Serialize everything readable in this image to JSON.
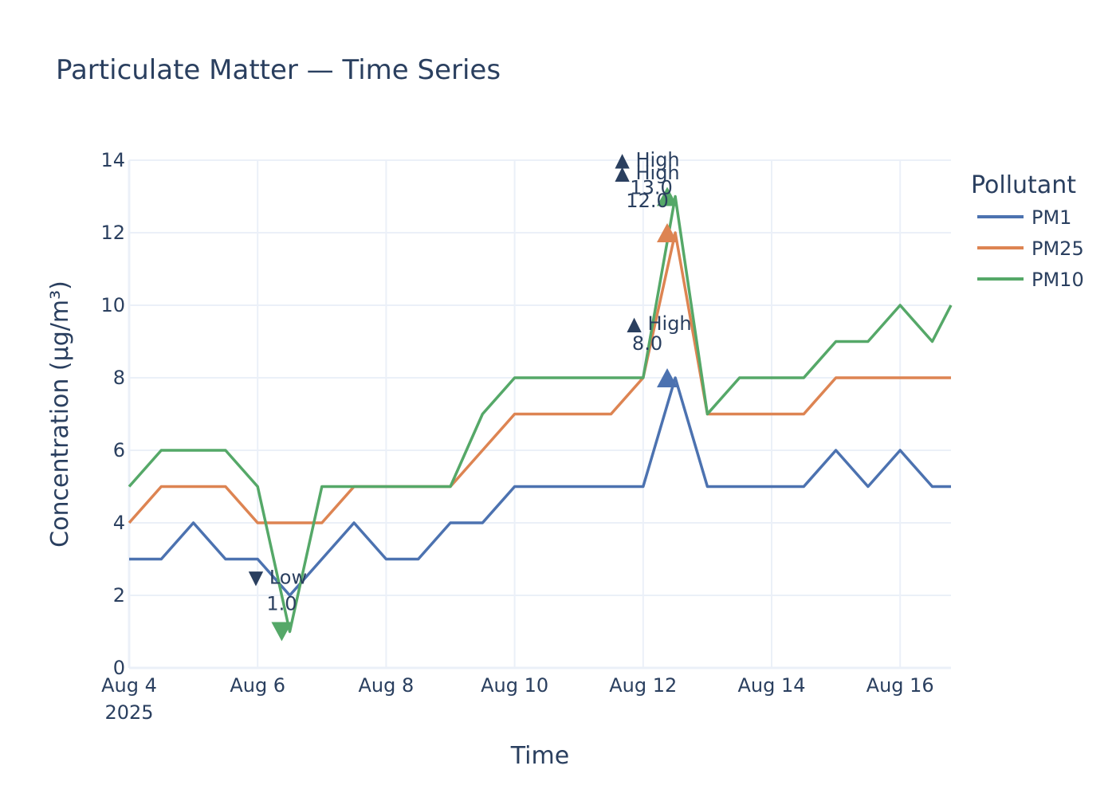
{
  "chart_data": {
    "type": "line",
    "title": "Particulate Matter — Time Series",
    "xlabel": "Time",
    "ylabel": "Concentration (µg/m³)",
    "x_range": [
      "2025-08-04",
      "2025-08-16 19:00"
    ],
    "ylim": [
      0,
      14
    ],
    "grid": true,
    "x_ticks": [
      {
        "date": "2025-08-04",
        "label": "Aug 4",
        "sublabel": "2025"
      },
      {
        "date": "2025-08-06",
        "label": "Aug 6"
      },
      {
        "date": "2025-08-08",
        "label": "Aug 8"
      },
      {
        "date": "2025-08-10",
        "label": "Aug 10"
      },
      {
        "date": "2025-08-12",
        "label": "Aug 12"
      },
      {
        "date": "2025-08-14",
        "label": "Aug 14"
      },
      {
        "date": "2025-08-16",
        "label": "Aug 16"
      }
    ],
    "y_ticks": [
      0,
      2,
      4,
      6,
      8,
      10,
      12,
      14
    ],
    "legend": {
      "title": "Pollutant",
      "position": "top-right"
    },
    "series": [
      {
        "name": "PM1",
        "color": "#4c72b0",
        "x": [
          "2025-08-04 00:00",
          "2025-08-04 12:00",
          "2025-08-05 00:00",
          "2025-08-05 12:00",
          "2025-08-06 00:00",
          "2025-08-06 12:00",
          "2025-08-07 00:00",
          "2025-08-07 12:00",
          "2025-08-08 00:00",
          "2025-08-08 12:00",
          "2025-08-09 00:00",
          "2025-08-09 12:00",
          "2025-08-10 00:00",
          "2025-08-10 12:00",
          "2025-08-11 00:00",
          "2025-08-11 12:00",
          "2025-08-12 00:00",
          "2025-08-12 12:00",
          "2025-08-13 00:00",
          "2025-08-13 12:00",
          "2025-08-14 00:00",
          "2025-08-14 12:00",
          "2025-08-15 00:00",
          "2025-08-15 12:00",
          "2025-08-16 00:00",
          "2025-08-16 12:00",
          "2025-08-16 19:00"
        ],
        "y": [
          3,
          3,
          4,
          3,
          3,
          2,
          3,
          4,
          3,
          3,
          4,
          4,
          5,
          5,
          5,
          5,
          5,
          8,
          5,
          5,
          5,
          5,
          6,
          5,
          6,
          5,
          5
        ]
      },
      {
        "name": "PM25",
        "color": "#dd8452",
        "x": [
          "2025-08-04 00:00",
          "2025-08-04 12:00",
          "2025-08-05 00:00",
          "2025-08-05 12:00",
          "2025-08-06 00:00",
          "2025-08-06 12:00",
          "2025-08-07 00:00",
          "2025-08-07 12:00",
          "2025-08-08 00:00",
          "2025-08-08 12:00",
          "2025-08-09 00:00",
          "2025-08-09 12:00",
          "2025-08-10 00:00",
          "2025-08-10 12:00",
          "2025-08-11 00:00",
          "2025-08-11 12:00",
          "2025-08-12 00:00",
          "2025-08-12 12:00",
          "2025-08-13 00:00",
          "2025-08-13 12:00",
          "2025-08-14 00:00",
          "2025-08-14 12:00",
          "2025-08-15 00:00",
          "2025-08-15 12:00",
          "2025-08-16 00:00",
          "2025-08-16 12:00",
          "2025-08-16 19:00"
        ],
        "y": [
          4,
          5,
          5,
          5,
          4,
          4,
          4,
          5,
          5,
          5,
          5,
          6,
          7,
          7,
          7,
          7,
          8,
          12,
          7,
          7,
          7,
          7,
          8,
          8,
          8,
          8,
          8
        ]
      },
      {
        "name": "PM10",
        "color": "#55a868",
        "x": [
          "2025-08-04 00:00",
          "2025-08-04 12:00",
          "2025-08-05 00:00",
          "2025-08-05 12:00",
          "2025-08-06 00:00",
          "2025-08-06 12:00",
          "2025-08-07 00:00",
          "2025-08-07 12:00",
          "2025-08-08 00:00",
          "2025-08-08 12:00",
          "2025-08-09 00:00",
          "2025-08-09 12:00",
          "2025-08-10 00:00",
          "2025-08-10 12:00",
          "2025-08-11 00:00",
          "2025-08-11 12:00",
          "2025-08-12 00:00",
          "2025-08-12 12:00",
          "2025-08-13 00:00",
          "2025-08-13 12:00",
          "2025-08-14 00:00",
          "2025-08-14 12:00",
          "2025-08-15 00:00",
          "2025-08-15 12:00",
          "2025-08-16 00:00",
          "2025-08-16 12:00",
          "2025-08-16 19:00"
        ],
        "y": [
          5,
          6,
          6,
          6,
          5,
          1,
          5,
          5,
          5,
          5,
          5,
          7,
          8,
          8,
          8,
          8,
          8,
          13,
          7,
          8,
          8,
          8,
          9,
          9,
          10,
          9,
          10
        ]
      }
    ],
    "annotations": [
      {
        "symbol": "▲",
        "text": "High",
        "value_label": "13.0",
        "x": "2025-08-12 09:00",
        "y": 13,
        "color": "#55a868",
        "marker": "up"
      },
      {
        "symbol": "▲",
        "text": "High",
        "value_label": "12.0",
        "x": "2025-08-12 09:00",
        "y": 12,
        "color": "#dd8452",
        "marker": "up"
      },
      {
        "symbol": "▲",
        "text": "High",
        "value_label": "8.0",
        "x": "2025-08-12 09:00",
        "y": 8,
        "color": "#4c72b0",
        "marker": "up"
      },
      {
        "symbol": "▼",
        "text": "Low",
        "value_label": "1.0",
        "x": "2025-08-06 09:00",
        "y": 1,
        "color": "#55a868",
        "marker": "down"
      }
    ]
  }
}
